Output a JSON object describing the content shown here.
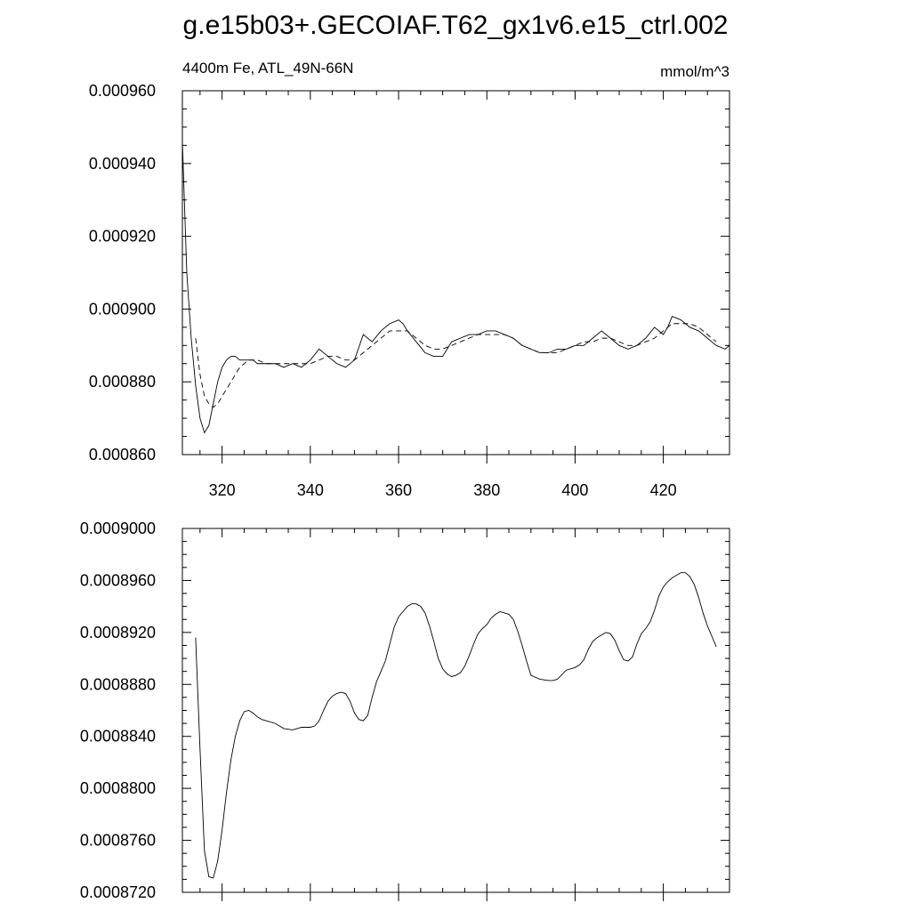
{
  "title": "g.e15b03+.GECOIAF.T62_gx1v6.e15_ctrl.002",
  "chart_data": [
    {
      "type": "line",
      "title": "",
      "subtitle_left": "4400m Fe, ATL_49N-66N",
      "subtitle_right": "mmol/m^3",
      "xlabel": "",
      "ylabel": "",
      "xlim": [
        311,
        435
      ],
      "ylim": [
        0.00086,
        0.00096
      ],
      "xticks": [
        320,
        340,
        360,
        380,
        400,
        420
      ],
      "xtick_labels": [
        "320",
        "340",
        "360",
        "380",
        "400",
        "420"
      ],
      "yticks": [
        0.00086,
        0.00088,
        0.0009,
        0.00092,
        0.00094,
        0.00096
      ],
      "ytick_labels": [
        "0.000860",
        "0.000880",
        "0.000900",
        "0.000920",
        "0.000940",
        "0.000960"
      ],
      "grid": false,
      "series": [
        {
          "style": "solid",
          "x": [
            311,
            312,
            313,
            314,
            315,
            316,
            317,
            318,
            319,
            320,
            321,
            322,
            323,
            324,
            325,
            326,
            327,
            328,
            330,
            332,
            334,
            336,
            338,
            340,
            342,
            344,
            346,
            348,
            350,
            352,
            354,
            356,
            358,
            360,
            361,
            362,
            364,
            366,
            368,
            370,
            372,
            374,
            376,
            378,
            380,
            382,
            384,
            386,
            388,
            390,
            392,
            394,
            396,
            398,
            400,
            402,
            404,
            406,
            408,
            410,
            412,
            414,
            416,
            418,
            420,
            421,
            422,
            424,
            426,
            428,
            430,
            432,
            434,
            435
          ],
          "y": [
            0.000946,
            0.00091,
            0.000892,
            0.000879,
            0.00087,
            0.000866,
            0.000868,
            0.000874,
            0.00088,
            0.000884,
            0.000886,
            0.000887,
            0.000887,
            0.000886,
            0.000886,
            0.000886,
            0.000886,
            0.000885,
            0.000885,
            0.000885,
            0.000884,
            0.000885,
            0.000884,
            0.000886,
            0.000889,
            0.000887,
            0.000885,
            0.000884,
            0.000886,
            0.000893,
            0.000891,
            0.000894,
            0.000896,
            0.000897,
            0.000896,
            0.000894,
            0.000891,
            0.000888,
            0.000887,
            0.000887,
            0.000891,
            0.000892,
            0.000893,
            0.000893,
            0.000894,
            0.000894,
            0.000893,
            0.000892,
            0.00089,
            0.000889,
            0.000888,
            0.000888,
            0.000889,
            0.000889,
            0.00089,
            0.00089,
            0.000892,
            0.000894,
            0.000892,
            0.00089,
            0.000889,
            0.00089,
            0.000892,
            0.000895,
            0.000893,
            0.000895,
            0.000898,
            0.000897,
            0.000895,
            0.000894,
            0.000892,
            0.00089,
            0.000889,
            0.00089
          ]
        },
        {
          "style": "dashed",
          "x": [
            314,
            315,
            316,
            317,
            318,
            319,
            320,
            322,
            324,
            326,
            328,
            330,
            332,
            334,
            336,
            338,
            340,
            342,
            344,
            346,
            348,
            350,
            352,
            354,
            356,
            358,
            360,
            362,
            364,
            366,
            368,
            370,
            372,
            374,
            376,
            378,
            380,
            382,
            384,
            386,
            388,
            390,
            392,
            394,
            396,
            398,
            400,
            402,
            404,
            406,
            408,
            410,
            412,
            414,
            416,
            418,
            420,
            422,
            424,
            426,
            428,
            430,
            432
          ],
          "y": [
            0.000892,
            0.000882,
            0.000876,
            0.000874,
            0.000873,
            0.000874,
            0.000876,
            0.00088,
            0.000884,
            0.000886,
            0.000886,
            0.000885,
            0.000885,
            0.000885,
            0.000885,
            0.000885,
            0.000885,
            0.000886,
            0.000887,
            0.000887,
            0.000886,
            0.000886,
            0.000888,
            0.00089,
            0.000892,
            0.000894,
            0.000894,
            0.000894,
            0.000892,
            0.00089,
            0.000889,
            0.000889,
            0.00089,
            0.000891,
            0.000892,
            0.000893,
            0.000893,
            0.000893,
            0.000893,
            0.000892,
            0.00089,
            0.000889,
            0.000888,
            0.000888,
            0.000888,
            0.000889,
            0.00089,
            0.000891,
            0.000891,
            0.000892,
            0.000892,
            0.000891,
            0.00089,
            0.00089,
            0.000891,
            0.000892,
            0.000894,
            0.000896,
            0.000896,
            0.000896,
            0.000895,
            0.000893,
            0.000891
          ]
        }
      ]
    },
    {
      "type": "line",
      "title": "",
      "xlabel": "",
      "ylabel": "",
      "xlim": [
        311,
        435
      ],
      "ylim": [
        0.000872,
        0.0009
      ],
      "xticks": [
        320,
        340,
        360,
        380,
        400,
        420
      ],
      "yticks": [
        0.000872,
        0.000876,
        0.00088,
        0.000884,
        0.000888,
        0.000892,
        0.000896,
        0.0009
      ],
      "ytick_labels": [
        "0.0008720",
        "0.0008760",
        "0.0008800",
        "0.0008840",
        "0.0008880",
        "0.0008920",
        "0.0008960",
        "0.0009000"
      ],
      "grid": false,
      "series": [
        {
          "style": "solid",
          "x": [
            314,
            315,
            316,
            317,
            318,
            319,
            320,
            321,
            322,
            323,
            324,
            325,
            326,
            327,
            328,
            329,
            330,
            332,
            334,
            336,
            338,
            340,
            341,
            342,
            343,
            344,
            345,
            346,
            347,
            348,
            349,
            350,
            351,
            352,
            353,
            354,
            355,
            356,
            357,
            358,
            359,
            360,
            361,
            362,
            363,
            364,
            365,
            366,
            367,
            368,
            369,
            370,
            371,
            372,
            373,
            374,
            375,
            376,
            377,
            378,
            379,
            380,
            381,
            382,
            383,
            384,
            385,
            386,
            387,
            388,
            389,
            390,
            392,
            394,
            395,
            396,
            398,
            400,
            401,
            402,
            403,
            404,
            405,
            406,
            407,
            408,
            409,
            410,
            411,
            412,
            413,
            414,
            415,
            416,
            417,
            418,
            419,
            420,
            421,
            422,
            423,
            424,
            425,
            426,
            427,
            428,
            429,
            430,
            431,
            432
          ],
          "y": [
            0.0008916,
            0.000883,
            0.0008752,
            0.0008732,
            0.0008731,
            0.0008744,
            0.0008768,
            0.0008797,
            0.0008822,
            0.000884,
            0.0008852,
            0.0008859,
            0.000886,
            0.0008858,
            0.0008855,
            0.0008853,
            0.0008852,
            0.000885,
            0.0008846,
            0.0008845,
            0.0008847,
            0.0008847,
            0.0008848,
            0.0008852,
            0.000886,
            0.0008867,
            0.0008871,
            0.0008873,
            0.0008874,
            0.0008873,
            0.0008867,
            0.0008858,
            0.0008853,
            0.0008852,
            0.0008856,
            0.000887,
            0.0008882,
            0.000889,
            0.0008898,
            0.0008911,
            0.0008924,
            0.0008932,
            0.0008936,
            0.000894,
            0.0008942,
            0.0008942,
            0.000894,
            0.0008935,
            0.0008925,
            0.0008913,
            0.00089,
            0.0008892,
            0.0008888,
            0.0008886,
            0.0008887,
            0.0008889,
            0.0008894,
            0.0008902,
            0.0008911,
            0.0008919,
            0.0008923,
            0.0008926,
            0.0008931,
            0.0008934,
            0.0008936,
            0.0008935,
            0.0008934,
            0.000893,
            0.0008921,
            0.000891,
            0.0008898,
            0.0008887,
            0.0008884,
            0.0008883,
            0.0008883,
            0.0008884,
            0.0008891,
            0.0008893,
            0.0008895,
            0.0008899,
            0.0008907,
            0.0008913,
            0.0008916,
            0.0008918,
            0.000892,
            0.0008919,
            0.0008914,
            0.0008906,
            0.0008899,
            0.0008898,
            0.0008901,
            0.0008911,
            0.0008919,
            0.0008923,
            0.0008928,
            0.0008937,
            0.0008948,
            0.0008955,
            0.0008959,
            0.0008962,
            0.0008964,
            0.0008966,
            0.0008966,
            0.0008963,
            0.0008957,
            0.0008947,
            0.0008935,
            0.0008925,
            0.0008917,
            0.0008909
          ]
        }
      ]
    }
  ]
}
